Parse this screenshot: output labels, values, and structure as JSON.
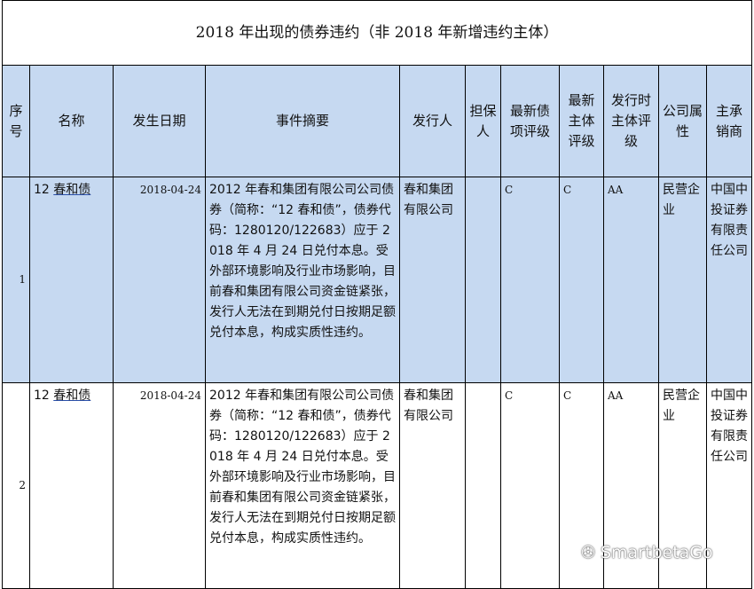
{
  "title": "2018 年出现的债券违约（非 2018 年新增违约主体）",
  "headers": [
    "序号",
    "名称",
    "发生日期",
    "事件摘要",
    "发行人",
    "担保人",
    "最新债项评级",
    "最新主体评级",
    "发行时主体评级",
    "公司属性",
    "主承销商"
  ],
  "rows": [
    {
      "no": "1",
      "name_prefix": "12 ",
      "name": "春和债",
      "date": "2018-04-24",
      "summary": "2012 年春和集团有限公司公司债券（简称：“12 春和债”，债券代码：1280120/122683）应于 2018 年 4 月 24 日兑付本息。受外部环境影响及行业市场影响，目前春和集团有限公司资金链紧张，发行人无法在到期兑付日按期足额兑付本息，构成实质性违约。",
      "issuer": "春和集团有限公司",
      "guarantor": "",
      "bond_rating": "C",
      "issuer_rating": "C",
      "issue_rating": "AA",
      "type": "民营企业",
      "underwriter": "中国中投证券有限责任公司"
    },
    {
      "no": "2",
      "name_prefix": "12 ",
      "name": "春和债",
      "date": "2018-04-24",
      "summary": "2012 年春和集团有限公司公司债券（简称：“12 春和债”，债券代码：1280120/122683）应于 2018 年 4 月 24 日兑付本息。受外部环境影响及行业市场影响，目前春和集团有限公司资金链紧张，发行人无法在到期兑付日按期足额兑付本息，构成实质性违约。",
      "issuer": "春和集团有限公司",
      "guarantor": "",
      "bond_rating": "C",
      "issuer_rating": "C",
      "issue_rating": "AA",
      "type": "民营企业",
      "underwriter": "中国中投证券有限责任公司"
    }
  ],
  "watermark": "SmartbetaGo",
  "colors": {
    "header_bg": "#c6d9f1",
    "row_highlight": "#c6d9f1"
  }
}
